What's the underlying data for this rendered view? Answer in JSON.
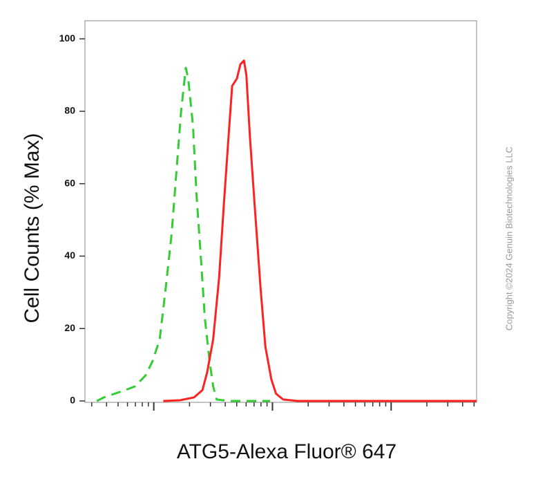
{
  "chart_data": {
    "type": "line",
    "y_label": "Cell Counts (% Max)",
    "x_label": "ATG5-Alexa Fluor® 647",
    "copyright": "Copyright ©2024 Genuin Biotechnologies LLC",
    "log_scale_x": true,
    "xlim": [
      -0.58,
      2.72
    ],
    "ylim": [
      0,
      105
    ],
    "yticks": [
      0,
      20,
      40,
      60,
      80,
      100
    ],
    "series": [
      {
        "color": "#33cc33",
        "dashed": true,
        "x": [
          -0.48,
          -0.42,
          -0.33,
          -0.24,
          -0.16,
          -0.07,
          -0.01,
          0.05,
          0.1,
          0.15,
          0.19,
          0.23,
          0.27,
          0.29,
          0.33,
          0.36,
          0.4,
          0.43,
          0.47,
          0.5,
          0.53,
          0.63,
          0.8,
          0.98
        ],
        "values": [
          0,
          1,
          2,
          3,
          4,
          7,
          11,
          17,
          31,
          46,
          63,
          80,
          92,
          89,
          76,
          57,
          38,
          23,
          11,
          4,
          0.4,
          0,
          0,
          0
        ]
      },
      {
        "color": "#ff2020",
        "dashed": false,
        "x": [
          0.08,
          0.22,
          0.34,
          0.41,
          0.45,
          0.5,
          0.55,
          0.59,
          0.63,
          0.66,
          0.7,
          0.73,
          0.76,
          0.78,
          0.81,
          0.85,
          0.9,
          0.94,
          0.99,
          1.03,
          1.09,
          1.21,
          1.62,
          2.2,
          2.72
        ],
        "values": [
          0,
          0.2,
          1,
          3,
          8,
          17,
          34,
          54,
          73,
          87,
          89,
          93,
          94,
          90,
          73,
          54,
          31,
          15,
          6,
          2,
          0.4,
          0,
          0,
          0,
          0
        ]
      }
    ]
  }
}
